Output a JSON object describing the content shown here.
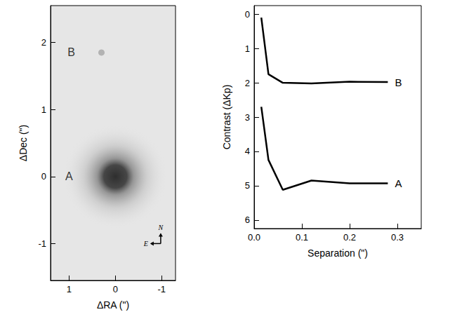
{
  "chart_data": [
    {
      "type": "image",
      "xlabel": "ΔRA (\")",
      "ylabel": "ΔDec (\")",
      "xlim": [
        1.4,
        -1.3
      ],
      "ylim": [
        -1.55,
        2.55
      ],
      "xticks": [
        1,
        0,
        -1
      ],
      "yticks": [
        -1,
        0,
        1,
        2
      ],
      "sources": {
        "x": [
          0,
          0.3
        ],
        "y": [
          0,
          1.85
        ]
      },
      "annotations": [
        {
          "text": "A",
          "x": 1.0,
          "y": 0
        },
        {
          "text": "B",
          "x": 0.95,
          "y": 1.85
        }
      ],
      "compass": {
        "x": -0.98,
        "y": -1.0,
        "north": "N",
        "east": "E"
      }
    },
    {
      "type": "line",
      "xlabel": "Separation (\")",
      "ylabel": "Contrast (ΔKp)",
      "xlim": [
        0,
        0.35
      ],
      "ylim": [
        6.25,
        -0.25
      ],
      "xticks": [
        {
          "value": 0,
          "label": "0.0"
        },
        {
          "value": 0.1,
          "label": "0.1"
        },
        {
          "value": 0.2,
          "label": "0.2"
        },
        {
          "value": 0.3,
          "label": "0.3"
        }
      ],
      "yticks": [
        0,
        1,
        2,
        3,
        4,
        5,
        6
      ],
      "series": [
        {
          "name": "B",
          "color": "#000000",
          "x": [
            0.015,
            0.03,
            0.06,
            0.12,
            0.2,
            0.28
          ],
          "values": [
            0.1,
            1.75,
            2.0,
            2.02,
            1.97,
            1.98
          ]
        },
        {
          "name": "A",
          "color": "#000000",
          "x": [
            0.015,
            0.03,
            0.06,
            0.12,
            0.2,
            0.28
          ],
          "values": [
            2.7,
            4.25,
            5.12,
            4.85,
            4.93,
            4.93
          ]
        }
      ]
    }
  ]
}
